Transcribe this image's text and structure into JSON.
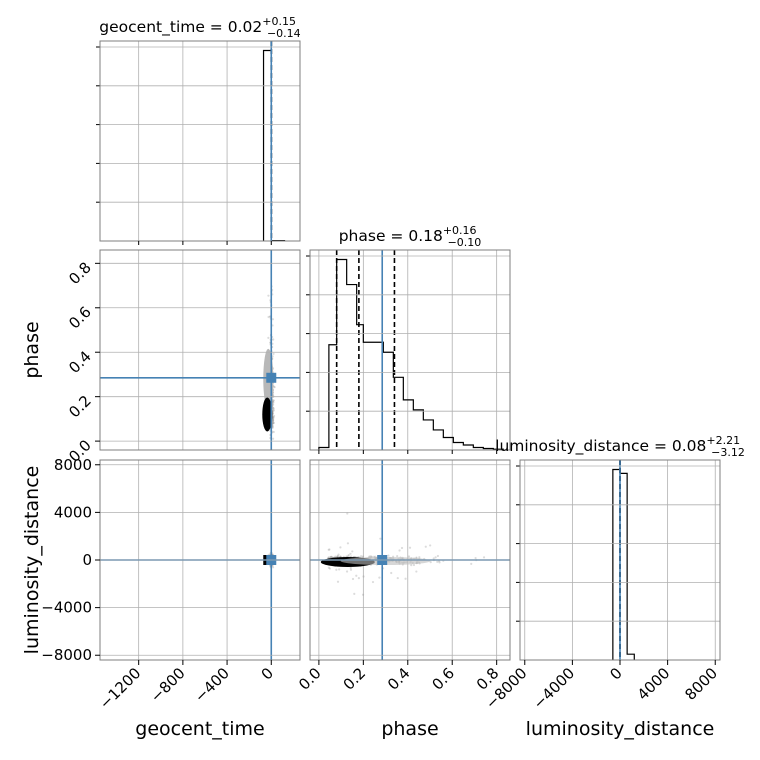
{
  "chart_data": {
    "type": "corner",
    "truth_color": "#4682b4",
    "parameters": [
      {
        "key": "geocent_time",
        "label": "geocent_time",
        "title_prefix": "geocent_time = ",
        "median": "0.02",
        "upper": "+0.15",
        "lower": "−0.14",
        "truth": 0,
        "range": [
          -1550,
          260
        ],
        "ticks": [
          -1200,
          -800,
          -400,
          0
        ],
        "tick_labels": [
          "−1200",
          "−800",
          "−400",
          "0"
        ],
        "quantiles": [
          -0.12,
          0.02,
          0.17
        ],
        "hist": {
          "edges": [
            -70,
            0,
            120
          ],
          "counts": [
            0.96,
            0.002
          ]
        }
      },
      {
        "key": "phase",
        "label": "phase",
        "title_prefix": "phase = ",
        "median": "0.18",
        "upper": "+0.16",
        "lower": "−0.10",
        "truth": 0.285,
        "range": [
          -0.04,
          0.86
        ],
        "ticks": [
          0.0,
          0.2,
          0.4,
          0.6,
          0.8
        ],
        "tick_labels": [
          "0.0",
          "0.2",
          "0.4",
          "0.6",
          "0.8"
        ],
        "quantiles": [
          0.08,
          0.18,
          0.34
        ],
        "hist": {
          "edges": [
            0.0,
            0.045,
            0.08,
            0.125,
            0.17,
            0.2,
            0.245,
            0.29,
            0.335,
            0.38,
            0.425,
            0.47,
            0.515,
            0.56,
            0.605,
            0.65,
            0.695,
            0.74,
            0.785,
            0.83
          ],
          "counts": [
            0.01,
            0.42,
            0.76,
            0.66,
            0.5,
            0.43,
            0.43,
            0.39,
            0.29,
            0.2,
            0.16,
            0.12,
            0.08,
            0.05,
            0.03,
            0.02,
            0.01,
            0.006,
            0.003
          ]
        }
      },
      {
        "key": "luminosity_distance",
        "label": "luminosity_distance",
        "title_prefix": "luminosity_distance = ",
        "median": "0.08",
        "upper": "+2.21",
        "lower": "−3.12",
        "truth": 0,
        "range": [
          -8400,
          8400
        ],
        "ticks": [
          -8000,
          -4000,
          0,
          4000,
          8000
        ],
        "tick_labels": [
          "−8000",
          "−4000",
          "0",
          "4000",
          "8000"
        ],
        "quantiles": [
          -3.04,
          0.08,
          2.29
        ],
        "hist": {
          "edges": [
            -600,
            0,
            600,
            1200
          ],
          "counts": [
            0.98,
            0.96,
            0.03
          ]
        }
      }
    ]
  }
}
